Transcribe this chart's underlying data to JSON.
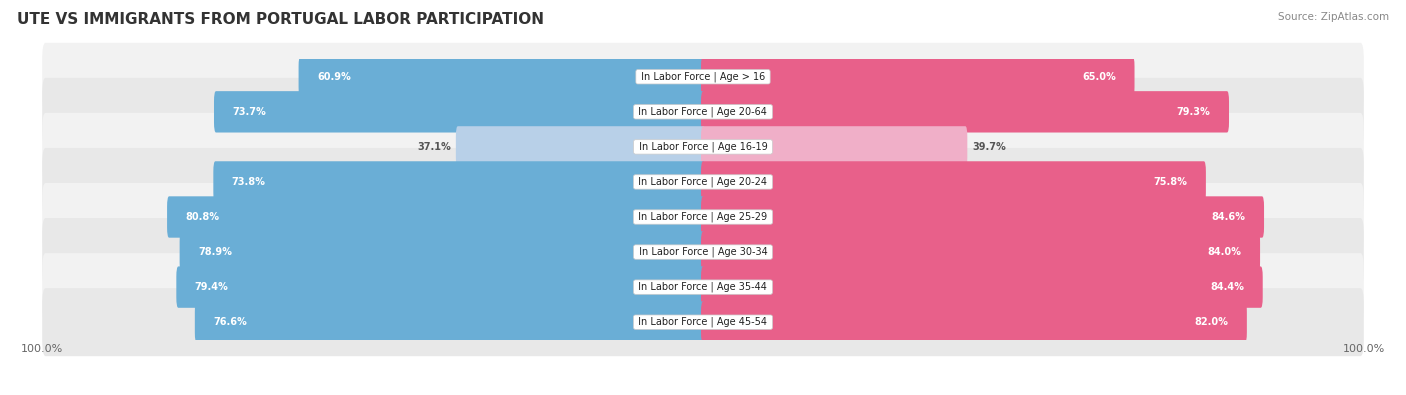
{
  "title": "UTE VS IMMIGRANTS FROM PORTUGAL LABOR PARTICIPATION",
  "source": "Source: ZipAtlas.com",
  "categories": [
    "In Labor Force | Age > 16",
    "In Labor Force | Age 20-64",
    "In Labor Force | Age 16-19",
    "In Labor Force | Age 20-24",
    "In Labor Force | Age 25-29",
    "In Labor Force | Age 30-34",
    "In Labor Force | Age 35-44",
    "In Labor Force | Age 45-54"
  ],
  "ute_values": [
    60.9,
    73.7,
    37.1,
    73.8,
    80.8,
    78.9,
    79.4,
    76.6
  ],
  "portugal_values": [
    65.0,
    79.3,
    39.7,
    75.8,
    84.6,
    84.0,
    84.4,
    82.0
  ],
  "ute_color_strong": "#6aaed6",
  "ute_color_light": "#b8d0e8",
  "portugal_color_strong": "#e8608a",
  "portugal_color_light": "#f0afc8",
  "row_bg_color_odd": "#f2f2f2",
  "row_bg_color_even": "#e8e8e8",
  "title_fontsize": 11,
  "label_fontsize": 7,
  "value_fontsize": 7,
  "legend_fontsize": 9,
  "axis_label_fontsize": 8,
  "max_value": 100.0,
  "background_color": "#ffffff"
}
